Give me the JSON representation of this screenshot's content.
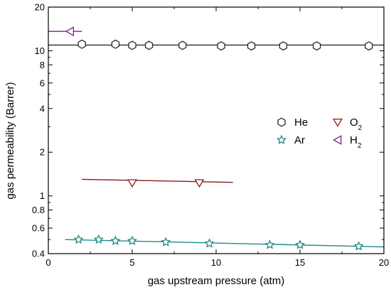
{
  "chart_data": {
    "type": "scatter",
    "title": "",
    "xlabel": "gas upstream pressure (atm)",
    "ylabel": "gas permeability (Barrer)",
    "xlim": [
      0,
      20
    ],
    "ylim": [
      0.4,
      20
    ],
    "yscale": "log",
    "grid": false,
    "legend_position": "right",
    "xticks": [
      0,
      5,
      10,
      15,
      20
    ],
    "yticks": [
      {
        "value": 0.4,
        "label": "0.4"
      },
      {
        "value": 0.6,
        "label": "0.6"
      },
      {
        "value": 0.8,
        "label": "0.8"
      },
      {
        "value": 1,
        "label": "1"
      },
      {
        "value": 2,
        "label": "2"
      },
      {
        "value": 4,
        "label": "4"
      },
      {
        "value": 6,
        "label": "6"
      },
      {
        "value": 8,
        "label": "8"
      },
      {
        "value": 10,
        "label": "10"
      },
      {
        "value": 20,
        "label": "20"
      }
    ],
    "series": [
      {
        "name": "He",
        "marker": "hexagon",
        "color": "#2b2b2b",
        "x": [
          2.0,
          4.0,
          5.0,
          6.0,
          8.0,
          10.3,
          12.1,
          14.0,
          16.0,
          19.1
        ],
        "y": [
          11.1,
          11.1,
          10.9,
          10.9,
          10.9,
          10.8,
          10.8,
          10.8,
          10.8,
          10.8
        ],
        "fit": {
          "x": [
            0.0,
            20.0
          ],
          "y": [
            10.95,
            10.95
          ]
        }
      },
      {
        "name": "O2",
        "label_main": "O",
        "label_sub": "2",
        "marker": "triangle-down",
        "color": "#8b1a1a",
        "x": [
          5.0,
          9.0
        ],
        "y": [
          1.23,
          1.23
        ],
        "fit": {
          "x": [
            2.0,
            11.0
          ],
          "y": [
            1.3,
            1.24
          ]
        }
      },
      {
        "name": "Ar",
        "marker": "star",
        "color": "#1f8a85",
        "x": [
          1.8,
          3.0,
          4.0,
          5.0,
          7.0,
          9.6,
          13.2,
          15.0,
          18.5
        ],
        "y": [
          0.5,
          0.5,
          0.49,
          0.49,
          0.48,
          0.47,
          0.46,
          0.46,
          0.45
        ],
        "fit": {
          "x": [
            1.0,
            20.0
          ],
          "y": [
            0.5,
            0.445
          ]
        }
      },
      {
        "name": "H2",
        "label_main": "H",
        "label_sub": "2",
        "marker": "triangle-left",
        "color": "#7b1f8a",
        "x": [
          1.3
        ],
        "y": [
          13.6
        ],
        "fit": {
          "x": [
            0.0,
            2.0
          ],
          "y": [
            13.6,
            13.6
          ]
        }
      }
    ]
  }
}
